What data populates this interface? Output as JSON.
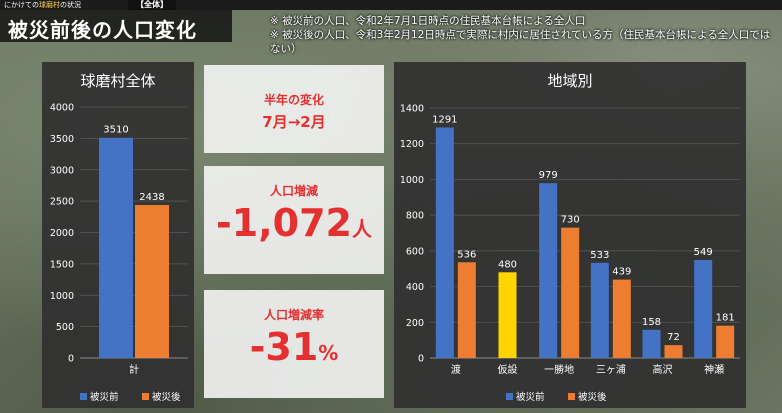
{
  "header": {
    "breadcrumb_prefix": "にかけての",
    "breadcrumb_highlight": "球磨村",
    "breadcrumb_suffix": "の状況",
    "section_tag": "【全体】",
    "page_title": "被災前後の人口変化",
    "notes": [
      "※ 被災前の人口、令和2年7月1日時点の住民基本台帳による全人口",
      "※ 被災後の人口、令和3年2月12日時点で実際に村内に居住されている方（住民基本台帳による全人口ではない）"
    ]
  },
  "cards": {
    "period_label": "半年の変化",
    "period_value": "7月→2月",
    "change_label": "人口増減",
    "change_value": "-1,072",
    "change_unit": "人",
    "rate_label": "人口増減率",
    "rate_value": "-31",
    "rate_unit": "%"
  },
  "colors": {
    "before": "#4472c4",
    "after": "#ed7d31",
    "single": "#ffd400",
    "accent": "#e53030"
  },
  "chart_data": [
    {
      "type": "bar",
      "title": "球磨村全体",
      "categories": [
        "計"
      ],
      "series": [
        {
          "name": "被災前",
          "values": [
            3510
          ]
        },
        {
          "name": "被災後",
          "values": [
            2438
          ]
        }
      ],
      "yticks": [
        0,
        500,
        1000,
        1500,
        2000,
        2500,
        3000,
        3500,
        4000
      ],
      "ylim": [
        0,
        4000
      ],
      "legend": "bottom"
    },
    {
      "type": "bar",
      "title": "地域別",
      "categories": [
        "渡",
        "仮設",
        "一勝地",
        "三ヶ浦",
        "高沢",
        "神瀬"
      ],
      "series": [
        {
          "name": "被災前",
          "values": [
            1291,
            null,
            979,
            533,
            158,
            549
          ]
        },
        {
          "name": "被災後",
          "values": [
            536,
            480,
            730,
            439,
            72,
            181
          ]
        }
      ],
      "yticks": [
        0,
        200,
        400,
        600,
        800,
        1000,
        1200,
        1400
      ],
      "ylim": [
        0,
        1400
      ],
      "legend": "bottom"
    }
  ]
}
